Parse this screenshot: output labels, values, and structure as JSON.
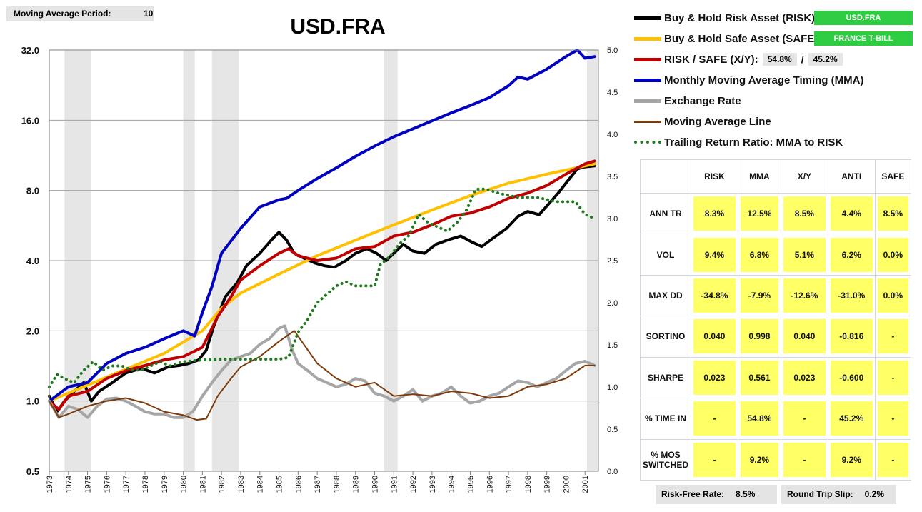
{
  "settings": {
    "ma_label": "Moving Average Period:",
    "ma_value": "10"
  },
  "legend": {
    "risk": {
      "label": "Buy & Hold Risk Asset (RISK):",
      "badge": "USD.FRA",
      "color": "#000000"
    },
    "safe": {
      "label": "Buy & Hold Safe Asset (SAFE):",
      "badge": "FRANCE T-BILL",
      "color": "#ffc000"
    },
    "xy": {
      "label": "RISK / SAFE (X/Y):",
      "risk_pct": "54.8%",
      "slash": "/",
      "safe_pct": "45.2%",
      "color": "#c00000"
    },
    "mma": {
      "label": "Monthly Moving Average Timing (MMA)",
      "color": "#0000c0"
    },
    "fx": {
      "label": "Exchange Rate",
      "color": "#a6a6a6"
    },
    "mal": {
      "label": "Moving Average Line",
      "color": "#7b3b0c"
    },
    "ratio": {
      "label": "Trailing Return Ratio: MMA to RISK",
      "color": "#1e7b1e"
    }
  },
  "stats": {
    "headers": [
      "RISK",
      "MMA",
      "X/Y",
      "ANTI",
      "SAFE"
    ],
    "rows": [
      {
        "label": "ANN TR",
        "values": [
          "8.3%",
          "12.5%",
          "8.5%",
          "4.4%",
          "8.5%"
        ]
      },
      {
        "label": "VOL",
        "values": [
          "9.4%",
          "6.8%",
          "5.1%",
          "6.2%",
          "0.0%"
        ]
      },
      {
        "label": "MAX DD",
        "values": [
          "-34.8%",
          "-7.9%",
          "-12.6%",
          "-31.0%",
          "0.0%"
        ]
      },
      {
        "label": "SORTINO",
        "values": [
          "0.040",
          "0.998",
          "0.040",
          "-0.816",
          "-"
        ]
      },
      {
        "label": "SHARPE",
        "values": [
          "0.023",
          "0.561",
          "0.023",
          "-0.600",
          "-"
        ]
      },
      {
        "label": "% TIME IN",
        "values": [
          "-",
          "54.8%",
          "-",
          "45.2%",
          "-"
        ]
      },
      {
        "label": "% MOS SWITCHED",
        "values": [
          "-",
          "9.2%",
          "-",
          "9.2%",
          "-"
        ]
      }
    ]
  },
  "footer": {
    "rf_label": "Risk-Free Rate:",
    "rf_value": "8.5%",
    "slip_label": "Round Trip Slip:",
    "slip_value": "0.2%"
  },
  "chart_data": {
    "type": "line",
    "title": "USD.FRA",
    "y_scale": "log2",
    "ylim": [
      0.5,
      32
    ],
    "y_ticks": [
      "0.5",
      "1.0",
      "2.0",
      "4.0",
      "8.0",
      "16.0",
      "32.0"
    ],
    "y2lim": [
      0,
      5
    ],
    "y2_ticks": [
      "0.0",
      "0.5",
      "1.0",
      "1.5",
      "2.0",
      "2.5",
      "3.0",
      "3.5",
      "4.0",
      "4.5",
      "5.0"
    ],
    "xlim": [
      1973,
      2001.7
    ],
    "x_ticks": [
      "1973",
      "1974",
      "1975",
      "1976",
      "1977",
      "1978",
      "1979",
      "1980",
      "1981",
      "1982",
      "1983",
      "1984",
      "1985",
      "1986",
      "1987",
      "1988",
      "1989",
      "1990",
      "1991",
      "1992",
      "1993",
      "1994",
      "1995",
      "1996",
      "1997",
      "1998",
      "1999",
      "2000",
      "2001"
    ],
    "shaded_periods": [
      [
        1973.8,
        1975.2
      ],
      [
        1980.0,
        1980.6
      ],
      [
        1981.5,
        1982.9
      ],
      [
        1990.5,
        1991.2
      ],
      [
        2001.1,
        2001.7
      ]
    ],
    "grid": true,
    "series": [
      {
        "name": "Buy & Hold Risk Asset (RISK)",
        "axis": "left",
        "color": "#000000",
        "width": 4,
        "x": [
          1973,
          1973.4,
          1973.8,
          1974.3,
          1974.8,
          1975.2,
          1975.6,
          1976.3,
          1977,
          1977.8,
          1978.5,
          1979.2,
          1979.8,
          1980.3,
          1980.8,
          1981.2,
          1981.6,
          1982.2,
          1982.8,
          1983.3,
          1984,
          1984.6,
          1985,
          1985.4,
          1985.8,
          1986.3,
          1986.9,
          1987.4,
          1987.9,
          1988.5,
          1989,
          1989.6,
          1990.1,
          1990.6,
          1991,
          1991.5,
          1992,
          1992.6,
          1993.2,
          1993.8,
          1994.5,
          1995.1,
          1995.6,
          1996.2,
          1996.9,
          1997.5,
          1998,
          1998.6,
          1999.1,
          1999.6,
          2000.1,
          2000.6,
          2001,
          2001.5
        ],
        "values": [
          1.05,
          0.9,
          1.0,
          1.1,
          1.2,
          1.0,
          1.1,
          1.2,
          1.32,
          1.38,
          1.32,
          1.4,
          1.42,
          1.45,
          1.5,
          1.65,
          2.1,
          2.8,
          3.2,
          3.8,
          4.3,
          4.9,
          5.3,
          4.9,
          4.3,
          4.1,
          3.9,
          3.8,
          3.75,
          4.0,
          4.3,
          4.5,
          4.3,
          4.0,
          4.3,
          4.7,
          4.4,
          4.3,
          4.7,
          4.9,
          5.1,
          4.8,
          4.6,
          5.0,
          5.5,
          6.2,
          6.5,
          6.3,
          7.0,
          7.8,
          8.8,
          9.9,
          10.1,
          10.2
        ]
      },
      {
        "name": "Buy & Hold Safe Asset (SAFE)",
        "axis": "left",
        "color": "#ffc000",
        "width": 4,
        "x": [
          1973,
          1975,
          1977,
          1979,
          1981,
          1982,
          1983,
          1985,
          1987,
          1989,
          1991,
          1993,
          1995,
          1997,
          1999,
          2001.5
        ],
        "values": [
          1.0,
          1.17,
          1.37,
          1.6,
          2.0,
          2.5,
          2.9,
          3.5,
          4.2,
          4.9,
          5.7,
          6.6,
          7.6,
          8.6,
          9.4,
          10.4
        ]
      },
      {
        "name": "RISK / SAFE (X/Y)",
        "axis": "left",
        "color": "#c00000",
        "width": 4,
        "x": [
          1973,
          1973.5,
          1974,
          1975,
          1976,
          1977,
          1978,
          1979,
          1980,
          1981,
          1981.8,
          1982.5,
          1983,
          1984,
          1985,
          1985.5,
          1986,
          1987,
          1988,
          1989,
          1990,
          1991,
          1992,
          1993,
          1994,
          1995,
          1996,
          1997,
          1998,
          1999,
          2000,
          2001,
          2001.5
        ],
        "values": [
          1.0,
          0.92,
          1.05,
          1.1,
          1.25,
          1.35,
          1.42,
          1.5,
          1.55,
          1.7,
          2.3,
          2.8,
          3.3,
          3.8,
          4.3,
          4.5,
          4.2,
          4.0,
          4.1,
          4.5,
          4.6,
          5.1,
          5.3,
          5.7,
          6.2,
          6.4,
          6.8,
          7.4,
          7.8,
          8.4,
          9.4,
          10.4,
          10.7
        ]
      },
      {
        "name": "Monthly Moving Average Timing (MMA)",
        "axis": "left",
        "color": "#0000c0",
        "width": 4,
        "x": [
          1973,
          1974,
          1975,
          1976,
          1977,
          1978,
          1979,
          1980,
          1980.6,
          1981,
          1981.5,
          1982,
          1983,
          1984,
          1985,
          1985.4,
          1986,
          1987,
          1988,
          1989,
          1990,
          1991,
          1992,
          1993,
          1994,
          1995,
          1996,
          1997,
          1997.5,
          1998,
          1999,
          2000,
          2000.6,
          2001,
          2001.5
        ],
        "values": [
          1.0,
          1.15,
          1.2,
          1.45,
          1.6,
          1.7,
          1.85,
          2.0,
          1.9,
          2.4,
          3.1,
          4.3,
          5.5,
          6.8,
          7.3,
          7.4,
          8.0,
          9.0,
          10.0,
          11.2,
          12.4,
          13.6,
          14.7,
          15.9,
          17.2,
          18.5,
          20.0,
          22.5,
          24.5,
          24.0,
          26.5,
          30.0,
          32.0,
          29.5,
          30.0
        ]
      },
      {
        "name": "Exchange Rate",
        "axis": "left",
        "color": "#a6a6a6",
        "width": 4,
        "x": [
          1973,
          1973.5,
          1974,
          1974.5,
          1975,
          1975.5,
          1976,
          1976.5,
          1977,
          1977.5,
          1978,
          1978.5,
          1979,
          1979.5,
          1980,
          1980.5,
          1981,
          1981.5,
          1982,
          1982.5,
          1983,
          1983.5,
          1984,
          1984.5,
          1985,
          1985.3,
          1985.7,
          1986,
          1986.5,
          1987,
          1987.5,
          1988,
          1988.5,
          1989,
          1989.5,
          1990,
          1990.5,
          1991,
          1991.5,
          1992,
          1992.5,
          1993,
          1993.5,
          1994,
          1994.5,
          1995,
          1995.5,
          1996,
          1996.5,
          1997,
          1997.5,
          1998,
          1998.5,
          1999,
          1999.5,
          2000,
          2000.5,
          2001,
          2001.5
        ],
        "values": [
          1.0,
          0.85,
          0.95,
          0.92,
          0.85,
          0.95,
          1.02,
          1.03,
          1.0,
          0.95,
          0.9,
          0.88,
          0.88,
          0.85,
          0.85,
          0.9,
          1.05,
          1.2,
          1.35,
          1.5,
          1.55,
          1.6,
          1.75,
          1.85,
          2.05,
          2.1,
          1.65,
          1.45,
          1.35,
          1.25,
          1.2,
          1.15,
          1.18,
          1.25,
          1.22,
          1.08,
          1.05,
          1.0,
          1.05,
          1.12,
          1.0,
          1.05,
          1.08,
          1.15,
          1.05,
          0.98,
          1.0,
          1.05,
          1.08,
          1.15,
          1.22,
          1.2,
          1.15,
          1.2,
          1.25,
          1.35,
          1.45,
          1.48,
          1.42
        ]
      },
      {
        "name": "Moving Average Line",
        "axis": "left",
        "color": "#7b3b0c",
        "width": 2,
        "x": [
          1973,
          1973.5,
          1974,
          1975,
          1976,
          1977,
          1978,
          1979,
          1980,
          1980.7,
          1981.2,
          1981.8,
          1982.5,
          1983,
          1984,
          1985,
          1985.8,
          1986.3,
          1987,
          1988,
          1989,
          1990,
          1991,
          1992,
          1993,
          1994,
          1995,
          1996,
          1997,
          1998,
          1999,
          2000,
          2001,
          2001.5
        ],
        "values": [
          1.0,
          0.85,
          0.88,
          0.95,
          1.0,
          1.03,
          0.98,
          0.9,
          0.87,
          0.83,
          0.84,
          1.05,
          1.25,
          1.4,
          1.55,
          1.8,
          2.0,
          1.75,
          1.45,
          1.25,
          1.15,
          1.2,
          1.05,
          1.07,
          1.05,
          1.1,
          1.08,
          1.03,
          1.05,
          1.15,
          1.18,
          1.25,
          1.42,
          1.42
        ]
      },
      {
        "name": "Trailing Return Ratio: MMA to RISK",
        "axis": "right",
        "color": "#1e7b1e",
        "width": 3,
        "dotted": true,
        "x": [
          1973,
          1973.4,
          1973.8,
          1974.3,
          1974.8,
          1975.3,
          1975.8,
          1976.3,
          1976.8,
          1977.3,
          1977.8,
          1978.3,
          1978.8,
          1979.3,
          1980,
          1981,
          1982,
          1983,
          1984,
          1985,
          1985.5,
          1986,
          1986.5,
          1987,
          1987.5,
          1988,
          1988.5,
          1989,
          1989.5,
          1990,
          1990.3,
          1990.8,
          1991.3,
          1991.8,
          1992.3,
          1992.8,
          1993.3,
          1993.8,
          1994.3,
          1994.8,
          1995.3,
          1995.8,
          1996.5,
          1997.5,
          1998.5,
          1999.5,
          2000.5,
          2001,
          2001.5
        ],
        "values": [
          1.0,
          1.15,
          1.1,
          1.05,
          1.2,
          1.3,
          1.2,
          1.25,
          1.25,
          1.2,
          1.2,
          1.25,
          1.3,
          1.25,
          1.3,
          1.32,
          1.33,
          1.33,
          1.33,
          1.33,
          1.35,
          1.65,
          1.8,
          2.0,
          2.1,
          2.2,
          2.25,
          2.2,
          2.2,
          2.2,
          2.45,
          2.55,
          2.7,
          2.8,
          3.05,
          2.95,
          2.9,
          2.85,
          2.95,
          3.1,
          3.35,
          3.35,
          3.3,
          3.25,
          3.25,
          3.2,
          3.2,
          3.05,
          3.0
        ]
      }
    ]
  }
}
